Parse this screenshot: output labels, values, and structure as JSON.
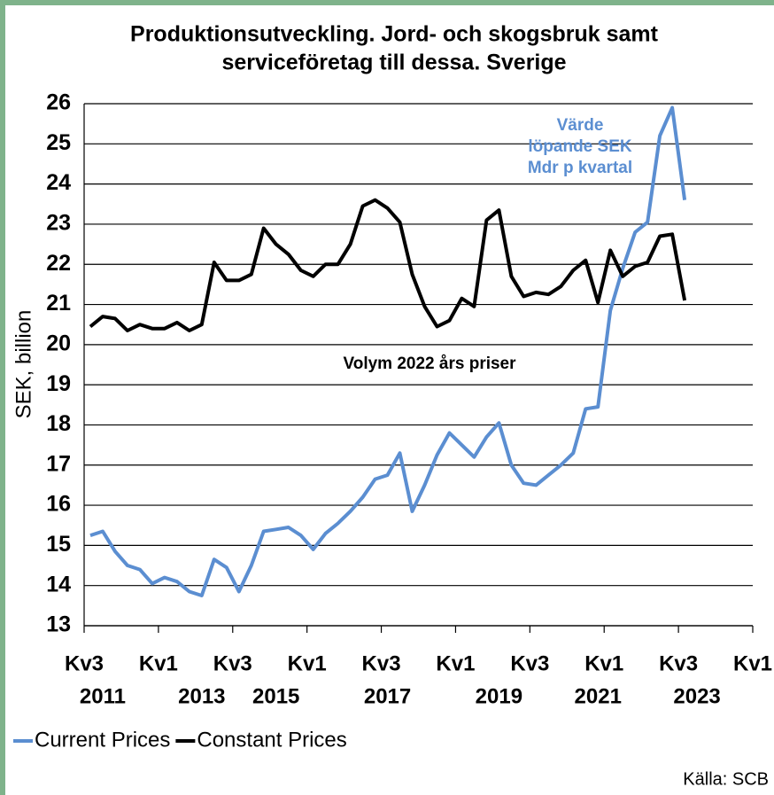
{
  "chart_data": {
    "type": "line",
    "title": [
      "Produktionsutveckling. Jord- och skogsbruk samt",
      "serviceföretag till dessa. Sverige"
    ],
    "y_label": "SEK, billion",
    "source": "Källa: SCB",
    "annotations": [
      {
        "lines": [
          "Värde",
          "löpande SEK",
          "Mdr p kvartal"
        ],
        "color": "#5b8ed1"
      },
      {
        "lines": [
          "Volym 2022 års priser"
        ],
        "color": "#000000"
      }
    ],
    "categories": [
      "Kv3",
      null,
      null,
      null,
      null,
      null,
      "Kv1",
      null,
      null,
      null,
      null,
      null,
      "Kv3",
      null,
      null,
      null,
      null,
      null,
      "Kv1",
      null,
      null,
      null,
      null,
      null,
      "Kv3",
      null,
      null,
      null,
      null,
      null,
      "Kv1",
      null,
      null,
      null,
      null,
      null,
      "Kv3",
      null,
      null,
      null,
      null,
      null,
      "Kv1",
      null,
      null,
      null,
      null,
      null,
      "Kv3",
      null,
      null,
      null,
      null,
      null,
      "Kv1"
    ],
    "year_labels": [
      null,
      "2011",
      null,
      null,
      null,
      null,
      null,
      null,
      null,
      "2013",
      null,
      null,
      null,
      null,
      null,
      "2015",
      null,
      null,
      null,
      null,
      null,
      null,
      null,
      null,
      "2017",
      null,
      null,
      null,
      null,
      null,
      null,
      null,
      null,
      "2019",
      null,
      null,
      null,
      null,
      null,
      null,
      null,
      "2021",
      null,
      null,
      null,
      null,
      null,
      null,
      null,
      "2023",
      null,
      null,
      null,
      null,
      null
    ],
    "series": [
      {
        "name": "Current Prices",
        "color": "#5b8ed1",
        "values": [
          15.25,
          15.35,
          14.85,
          14.5,
          14.4,
          14.05,
          14.2,
          14.1,
          13.85,
          13.75,
          14.65,
          14.45,
          13.85,
          14.5,
          15.35,
          15.4,
          15.45,
          15.25,
          14.9,
          15.3,
          15.55,
          15.85,
          16.2,
          16.65,
          16.75,
          17.3,
          15.85,
          16.5,
          17.25,
          17.8,
          17.5,
          17.2,
          17.7,
          18.05,
          17.0,
          16.55,
          16.5,
          16.75,
          17.0,
          17.3,
          18.4,
          18.45,
          20.85,
          21.9,
          22.8,
          23.05,
          25.2,
          25.9,
          23.6,
          null,
          null,
          null,
          null,
          null,
          null
        ]
      },
      {
        "name": "Constant Prices",
        "color": "#000000",
        "values": [
          20.45,
          20.7,
          20.65,
          20.35,
          20.5,
          20.4,
          20.4,
          20.55,
          20.35,
          20.5,
          22.05,
          21.6,
          21.6,
          21.75,
          22.9,
          22.5,
          22.25,
          21.85,
          21.7,
          22.0,
          22.0,
          22.5,
          23.45,
          23.6,
          23.4,
          23.05,
          21.75,
          20.95,
          20.45,
          20.6,
          21.15,
          20.95,
          23.1,
          23.35,
          21.7,
          21.2,
          21.3,
          21.25,
          21.45,
          21.85,
          22.1,
          21.05,
          22.35,
          21.7,
          21.95,
          22.05,
          22.7,
          22.75,
          21.1,
          null,
          null,
          null,
          null,
          null,
          null
        ]
      }
    ],
    "ylim": [
      13,
      26
    ],
    "yticks": [
      13,
      14,
      15,
      16,
      17,
      18,
      19,
      20,
      21,
      22,
      23,
      24,
      25,
      26
    ],
    "grid": true,
    "legend": "bottom-left"
  }
}
